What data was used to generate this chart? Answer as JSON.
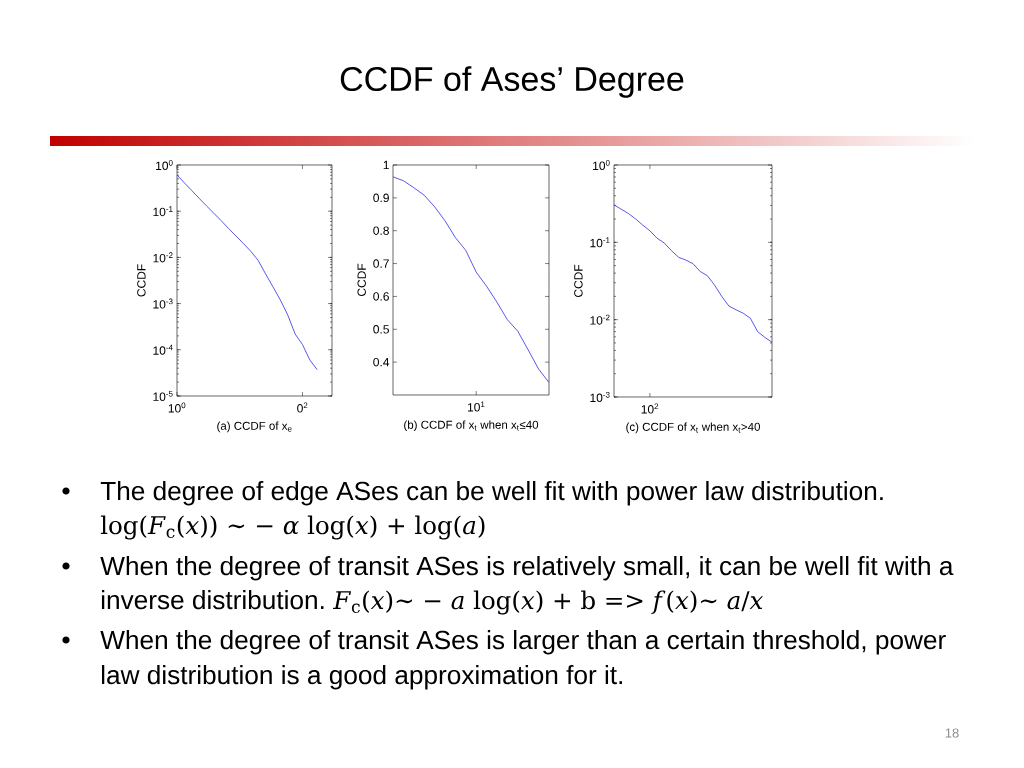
{
  "chart_data": [
    {
      "type": "other",
      "title": "CCDF of Ases’ Degree"
    },
    {
      "type": "line",
      "xlabel": "(a) CCDF of x$_{e}$",
      "ylabel": "CCDF",
      "log": "y",
      "ylim": [
        1e-05,
        1
      ],
      "yticks": [
        {
          "value": 1e-05,
          "label": "10$^{-5}$"
        },
        {
          "value": 0.0001,
          "label": "10$^{-4}$"
        },
        {
          "value": 0.001,
          "label": "10$^{-3}$"
        },
        {
          "value": 0.01,
          "label": "10$^{-2}$"
        },
        {
          "value": 0.1,
          "label": "10$^{-1}$"
        },
        {
          "value": 1,
          "label": "10$^{0}$"
        }
      ],
      "color": "#2f2fe8",
      "categories": [
        "10$^{0}$",
        null,
        null,
        null,
        null,
        null,
        null,
        null,
        null,
        null,
        null,
        null,
        null,
        null,
        null,
        null,
        null,
        "0$^{2}$",
        null,
        null,
        null,
        null
      ],
      "values": [
        0.61,
        0.41,
        0.28,
        0.19,
        0.13,
        0.09,
        0.062,
        0.042,
        0.029,
        0.02,
        0.0135,
        0.0086,
        0.0044,
        0.0023,
        0.0012,
        0.00057,
        0.00022,
        0.00013,
        6e-05,
        3.7e-05,
        null,
        null
      ]
    },
    {
      "type": "line",
      "xlabel": "(b) CCDF of x$_{t}$ when x$_{t}$≤40",
      "ylabel": "CCDF",
      "ylim": [
        0.3,
        1
      ],
      "yticks": [
        0.4,
        0.5,
        0.6,
        0.7,
        0.8,
        0.9,
        1
      ],
      "color": "#2f2fe8",
      "categories": [
        null,
        null,
        null,
        null,
        null,
        null,
        null,
        null,
        "10$^{1}$",
        null,
        null,
        null,
        null,
        null,
        null,
        null
      ],
      "values": [
        0.964,
        0.952,
        0.931,
        0.908,
        0.873,
        0.83,
        0.779,
        0.74,
        0.674,
        0.631,
        0.582,
        0.529,
        0.494,
        0.437,
        0.379,
        0.338
      ]
    },
    {
      "type": "line",
      "xlabel": "(c) CCDF of x$_{t}$ when x$_{t}$>40",
      "ylabel": "CCDF",
      "log": "y",
      "ylim": [
        0.001,
        1
      ],
      "yticks": [
        {
          "value": 0.001,
          "label": "10$^{-3}$"
        },
        {
          "value": 0.01,
          "label": "10$^{-2}$"
        },
        {
          "value": 0.1,
          "label": "10$^{-1}$"
        },
        {
          "value": 1,
          "label": "10$^{0}$"
        }
      ],
      "color": "#2f2fe8",
      "categories": [
        null,
        null,
        null,
        null,
        null,
        "10$^{2}$",
        null,
        null,
        null,
        null,
        null,
        null,
        null,
        null,
        null,
        null,
        null,
        null,
        null,
        null,
        null,
        null,
        null
      ],
      "values": [
        0.305,
        0.268,
        0.236,
        0.201,
        0.167,
        0.141,
        0.113,
        0.098,
        0.078,
        0.064,
        0.059,
        0.053,
        0.042,
        0.037,
        0.028,
        0.02,
        0.015,
        0.0134,
        0.0121,
        0.0104,
        0.007,
        0.0059,
        0.0051
      ]
    },
    {
      "type": "other",
      "annotations": [
        "The degree of edge ASes can be well fit with power law distribution.",
        "log(*F*$_{c}$(*x*)) ∼ − *α* log(*x*) + log(*a*)",
        "When the degree of transit ASes is relatively small, it can be well fit with a",
        "inverse distribution.",
        "*F*$_{c}$(*x*)∼ − *a* log(*x*) + b => *f*(*x*)∼ *a*/*x*",
        "When the degree of transit ASes is larger than a certain threshold, power",
        "law distribution is a good approximation for it.",
        "18"
      ]
    }
  ]
}
